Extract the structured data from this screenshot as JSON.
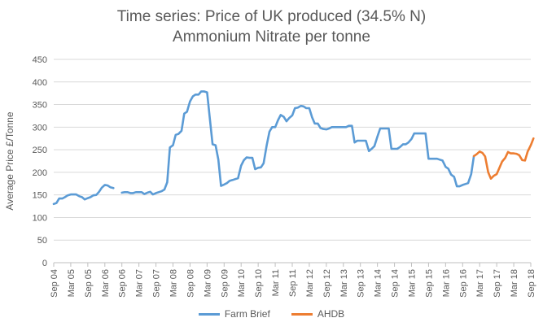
{
  "chart_data": {
    "type": "line",
    "title_line1": "Time series: Price of UK produced (34.5% N)",
    "title_line2": "Ammonium Nitrate per tonne",
    "ylabel": "Average Price £/Tonne",
    "ylim": [
      0,
      450
    ],
    "yticks": [
      0,
      50,
      100,
      150,
      200,
      250,
      300,
      350,
      400,
      450
    ],
    "xlim": [
      2004.67,
      2018.67
    ],
    "xticks": [
      {
        "label": "Sep 04",
        "t": 2004.67
      },
      {
        "label": "Mar 05",
        "t": 2005.17
      },
      {
        "label": "Sep 05",
        "t": 2005.67
      },
      {
        "label": "Mar 06",
        "t": 2006.17
      },
      {
        "label": "Sep 06",
        "t": 2006.67
      },
      {
        "label": "Mar 07",
        "t": 2007.17
      },
      {
        "label": "Sep 07",
        "t": 2007.67
      },
      {
        "label": "Mar 08",
        "t": 2008.17
      },
      {
        "label": "Sep 08",
        "t": 2008.67
      },
      {
        "label": "Mar 09",
        "t": 2009.17
      },
      {
        "label": "Sep 09",
        "t": 2009.67
      },
      {
        "label": "Mar 10",
        "t": 2010.17
      },
      {
        "label": "Sep 10",
        "t": 2010.67
      },
      {
        "label": "Mar 11",
        "t": 2011.17
      },
      {
        "label": "Sep 11",
        "t": 2011.67
      },
      {
        "label": "Mar 12",
        "t": 2012.17
      },
      {
        "label": "Sep 12",
        "t": 2012.67
      },
      {
        "label": "Mar 13",
        "t": 2013.17
      },
      {
        "label": "Sep 13",
        "t": 2013.67
      },
      {
        "label": "Mar 14",
        "t": 2014.17
      },
      {
        "label": "Sep 14",
        "t": 2014.67
      },
      {
        "label": "Mar 15",
        "t": 2015.17
      },
      {
        "label": "Sep 15",
        "t": 2015.67
      },
      {
        "label": "Mar 16",
        "t": 2016.17
      },
      {
        "label": "Sep 16",
        "t": 2016.67
      },
      {
        "label": "Mar 17",
        "t": 2017.17
      },
      {
        "label": "Sep 17",
        "t": 2017.67
      },
      {
        "label": "Mar 18",
        "t": 2018.17
      },
      {
        "label": "Sep 18",
        "t": 2018.67
      }
    ],
    "legend_position": "bottom",
    "series": [
      {
        "name": "Farm Brief",
        "color": "#5B9BD5",
        "segments": [
          [
            [
              2004.67,
              130
            ],
            [
              2004.75,
              132
            ],
            [
              2004.83,
              142
            ],
            [
              2004.92,
              142
            ],
            [
              2005.0,
              145
            ],
            [
              2005.08,
              149
            ],
            [
              2005.17,
              151
            ],
            [
              2005.25,
              151
            ],
            [
              2005.33,
              151
            ],
            [
              2005.42,
              147
            ],
            [
              2005.5,
              145
            ],
            [
              2005.58,
              140
            ],
            [
              2005.67,
              143
            ],
            [
              2005.75,
              145
            ],
            [
              2005.83,
              149
            ],
            [
              2005.92,
              150
            ],
            [
              2006.0,
              157
            ],
            [
              2006.08,
              166
            ],
            [
              2006.17,
              172
            ],
            [
              2006.25,
              171
            ],
            [
              2006.33,
              167
            ],
            [
              2006.42,
              165
            ]
          ],
          [
            [
              2006.67,
              155
            ],
            [
              2006.75,
              156
            ],
            [
              2006.83,
              156
            ],
            [
              2006.92,
              154
            ],
            [
              2007.0,
              154
            ],
            [
              2007.08,
              156
            ],
            [
              2007.17,
              156
            ],
            [
              2007.25,
              156
            ],
            [
              2007.33,
              152
            ],
            [
              2007.42,
              155
            ],
            [
              2007.5,
              157
            ],
            [
              2007.58,
              151
            ],
            [
              2007.67,
              154
            ],
            [
              2007.75,
              156
            ],
            [
              2007.83,
              158
            ],
            [
              2007.92,
              162
            ],
            [
              2008.0,
              178
            ],
            [
              2008.08,
              255
            ],
            [
              2008.17,
              260
            ],
            [
              2008.25,
              283
            ],
            [
              2008.33,
              285
            ],
            [
              2008.42,
              292
            ],
            [
              2008.5,
              330
            ],
            [
              2008.58,
              334
            ],
            [
              2008.67,
              357
            ],
            [
              2008.75,
              368
            ],
            [
              2008.83,
              372
            ],
            [
              2008.92,
              372
            ],
            [
              2009.0,
              379
            ],
            [
              2009.08,
              379
            ],
            [
              2009.17,
              377
            ],
            [
              2009.25,
              320
            ],
            [
              2009.33,
              262
            ],
            [
              2009.42,
              260
            ],
            [
              2009.5,
              228
            ],
            [
              2009.58,
              170
            ],
            [
              2009.67,
              173
            ],
            [
              2009.75,
              176
            ],
            [
              2009.83,
              181
            ],
            [
              2009.92,
              183
            ],
            [
              2010.0,
              185
            ],
            [
              2010.08,
              187
            ],
            [
              2010.17,
              215
            ],
            [
              2010.25,
              227
            ],
            [
              2010.33,
              233
            ],
            [
              2010.42,
              232
            ],
            [
              2010.5,
              232
            ],
            [
              2010.58,
              207
            ],
            [
              2010.67,
              210
            ],
            [
              2010.75,
              211
            ],
            [
              2010.83,
              220
            ],
            [
              2010.92,
              260
            ],
            [
              2011.0,
              290
            ],
            [
              2011.08,
              300
            ],
            [
              2011.17,
              300
            ],
            [
              2011.25,
              315
            ],
            [
              2011.33,
              327
            ],
            [
              2011.42,
              323
            ],
            [
              2011.5,
              313
            ],
            [
              2011.58,
              320
            ],
            [
              2011.67,
              326
            ],
            [
              2011.75,
              342
            ],
            [
              2011.83,
              343
            ],
            [
              2011.92,
              347
            ],
            [
              2012.0,
              346
            ],
            [
              2012.08,
              342
            ],
            [
              2012.17,
              342
            ],
            [
              2012.25,
              322
            ],
            [
              2012.33,
              308
            ],
            [
              2012.42,
              308
            ],
            [
              2012.5,
              298
            ],
            [
              2012.58,
              296
            ],
            [
              2012.67,
              295
            ],
            [
              2012.75,
              297
            ],
            [
              2012.83,
              300
            ],
            [
              2012.92,
              300
            ],
            [
              2013.0,
              300
            ],
            [
              2013.08,
              300
            ],
            [
              2013.17,
              300
            ],
            [
              2013.25,
              300
            ],
            [
              2013.33,
              303
            ],
            [
              2013.42,
              303
            ],
            [
              2013.5,
              266
            ],
            [
              2013.58,
              270
            ],
            [
              2013.67,
              270
            ],
            [
              2013.75,
              270
            ],
            [
              2013.83,
              270
            ],
            [
              2013.92,
              247
            ],
            [
              2014.0,
              252
            ],
            [
              2014.08,
              258
            ],
            [
              2014.17,
              279
            ],
            [
              2014.25,
              297
            ],
            [
              2014.33,
              297
            ],
            [
              2014.42,
              297
            ],
            [
              2014.5,
              297
            ],
            [
              2014.58,
              252
            ],
            [
              2014.67,
              252
            ],
            [
              2014.75,
              252
            ],
            [
              2014.83,
              256
            ],
            [
              2014.92,
              262
            ],
            [
              2015.0,
              262
            ],
            [
              2015.08,
              266
            ],
            [
              2015.17,
              274
            ],
            [
              2015.25,
              286
            ],
            [
              2015.33,
              286
            ],
            [
              2015.42,
              286
            ],
            [
              2015.5,
              286
            ],
            [
              2015.58,
              286
            ],
            [
              2015.67,
              230
            ],
            [
              2015.75,
              230
            ],
            [
              2015.83,
              230
            ],
            [
              2015.92,
              230
            ],
            [
              2016.0,
              228
            ],
            [
              2016.08,
              226
            ],
            [
              2016.17,
              212
            ],
            [
              2016.25,
              208
            ],
            [
              2016.33,
              195
            ],
            [
              2016.42,
              190
            ],
            [
              2016.5,
              169
            ],
            [
              2016.58,
              169
            ],
            [
              2016.67,
              172
            ],
            [
              2016.75,
              174
            ],
            [
              2016.83,
              176
            ],
            [
              2016.92,
              196
            ],
            [
              2017.0,
              236
            ]
          ]
        ]
      },
      {
        "name": "AHDB",
        "color": "#ED7D31",
        "segments": [
          [
            [
              2017.0,
              236
            ],
            [
              2017.08,
              240
            ],
            [
              2017.17,
              246
            ],
            [
              2017.25,
              243
            ],
            [
              2017.33,
              235
            ],
            [
              2017.42,
              200
            ],
            [
              2017.5,
              186
            ],
            [
              2017.58,
              192
            ],
            [
              2017.67,
              196
            ],
            [
              2017.75,
              210
            ],
            [
              2017.83,
              224
            ],
            [
              2017.92,
              232
            ],
            [
              2018.0,
              245
            ],
            [
              2018.08,
              242
            ],
            [
              2018.17,
              242
            ],
            [
              2018.25,
              241
            ],
            [
              2018.33,
              238
            ],
            [
              2018.42,
              227
            ],
            [
              2018.5,
              226
            ],
            [
              2018.58,
              246
            ],
            [
              2018.67,
              260
            ],
            [
              2018.75,
              275
            ]
          ]
        ]
      }
    ]
  }
}
